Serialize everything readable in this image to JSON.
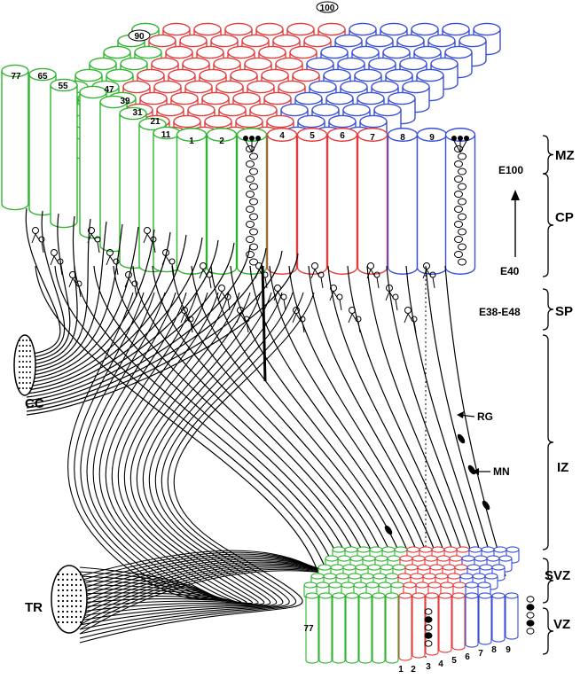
{
  "colors": {
    "green": "#2fb52f",
    "red": "#e23b3b",
    "blue": "#3a4fd6",
    "ink": "#000000"
  },
  "cortex": {
    "front_numbers": [
      "1",
      "2",
      "4",
      "5",
      "6",
      "7",
      "8",
      "9"
    ],
    "diagonal_numbers": [
      "11",
      "21",
      "31",
      "39",
      "47",
      "55",
      "65",
      "77"
    ],
    "back_numbers": [
      "90",
      "100"
    ]
  },
  "ventricular": {
    "front_numbers": [
      "1",
      "2",
      "3",
      "4",
      "5",
      "6",
      "7",
      "8",
      "9"
    ],
    "left_number": "77"
  },
  "zones": {
    "mz": "MZ",
    "cp": "CP",
    "sp": "SP",
    "iz": "IZ",
    "svz": "SVZ",
    "vz": "VZ"
  },
  "timeline": {
    "top": "E100",
    "bottom": "E40",
    "subplate": "E38-E48"
  },
  "annotations": {
    "cc": "CC",
    "tr": "TR",
    "rg": "RG",
    "mn": "MN"
  }
}
